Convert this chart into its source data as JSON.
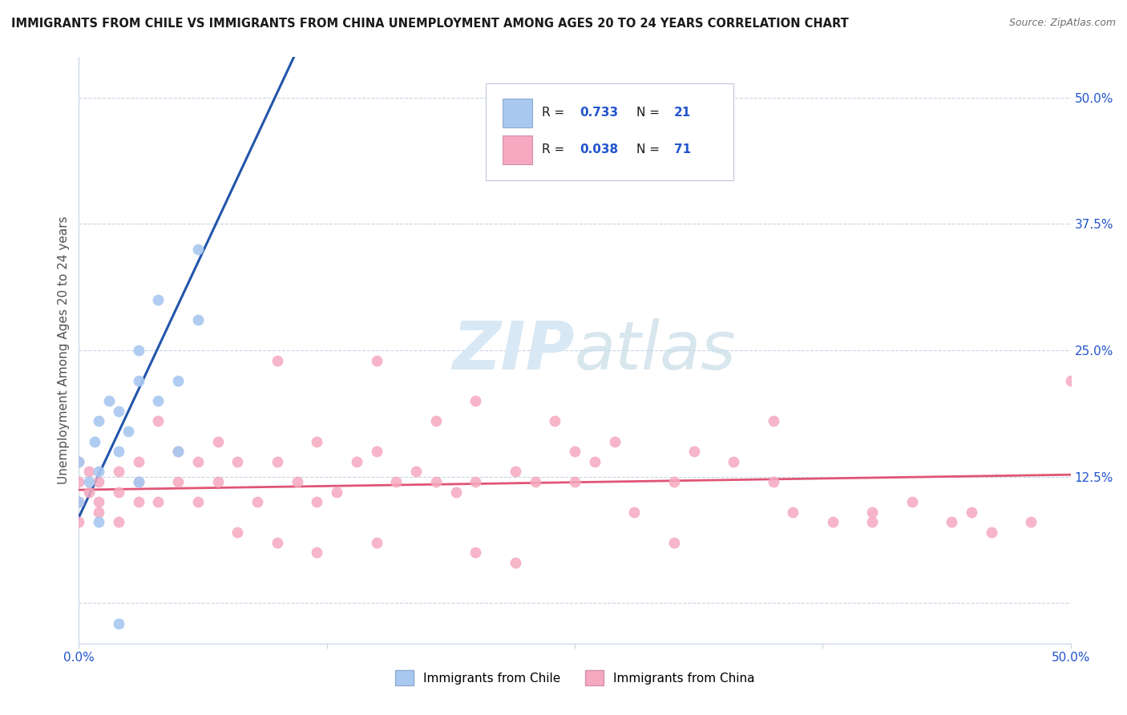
{
  "title": "IMMIGRANTS FROM CHILE VS IMMIGRANTS FROM CHINA UNEMPLOYMENT AMONG AGES 20 TO 24 YEARS CORRELATION CHART",
  "source": "Source: ZipAtlas.com",
  "ylabel": "Unemployment Among Ages 20 to 24 years",
  "xlim": [
    0.0,
    0.5
  ],
  "ylim": [
    -0.04,
    0.54
  ],
  "chile_color": "#a8c8f0",
  "china_color": "#f5a8c0",
  "chile_line_color": "#2255aa",
  "china_line_color": "#e05575",
  "chile_dash_color": "#aabbd8",
  "watermark_color": "#d8e8f5",
  "background_color": "#ffffff",
  "grid_color": "#c8d4e4",
  "legend_box_color": "#e8ecf4",
  "text_color": "#1a1a1a",
  "value_color": "#2255cc",
  "chile_scatter_x": [
    0.0,
    0.0,
    0.005,
    0.008,
    0.01,
    0.01,
    0.015,
    0.02,
    0.02,
    0.025,
    0.03,
    0.03,
    0.04,
    0.04,
    0.05,
    0.05,
    0.06,
    0.06,
    0.02,
    0.03,
    0.01
  ],
  "chile_scatter_y": [
    0.1,
    0.14,
    0.12,
    0.16,
    0.13,
    0.18,
    0.2,
    0.15,
    0.19,
    0.17,
    0.22,
    0.25,
    0.2,
    0.3,
    0.15,
    0.22,
    0.35,
    0.28,
    -0.02,
    0.12,
    0.08
  ],
  "china_scatter_x": [
    0.0,
    0.0,
    0.0,
    0.0,
    0.005,
    0.005,
    0.01,
    0.01,
    0.01,
    0.02,
    0.02,
    0.02,
    0.03,
    0.03,
    0.03,
    0.04,
    0.04,
    0.05,
    0.05,
    0.06,
    0.06,
    0.07,
    0.07,
    0.08,
    0.09,
    0.1,
    0.11,
    0.12,
    0.13,
    0.14,
    0.15,
    0.16,
    0.17,
    0.18,
    0.19,
    0.2,
    0.22,
    0.23,
    0.24,
    0.25,
    0.26,
    0.27,
    0.28,
    0.3,
    0.31,
    0.33,
    0.35,
    0.36,
    0.38,
    0.4,
    0.42,
    0.44,
    0.46,
    0.48,
    0.5,
    0.1,
    0.12,
    0.15,
    0.18,
    0.2,
    0.25,
    0.3,
    0.35,
    0.4,
    0.45,
    0.08,
    0.1,
    0.12,
    0.15,
    0.2,
    0.22
  ],
  "china_scatter_y": [
    0.1,
    0.12,
    0.14,
    0.08,
    0.11,
    0.13,
    0.1,
    0.12,
    0.09,
    0.11,
    0.13,
    0.08,
    0.14,
    0.1,
    0.12,
    0.1,
    0.18,
    0.15,
    0.12,
    0.14,
    0.1,
    0.12,
    0.16,
    0.14,
    0.1,
    0.14,
    0.12,
    0.16,
    0.11,
    0.14,
    0.15,
    0.12,
    0.13,
    0.18,
    0.11,
    0.12,
    0.13,
    0.12,
    0.18,
    0.15,
    0.14,
    0.16,
    0.09,
    0.12,
    0.15,
    0.14,
    0.12,
    0.09,
    0.08,
    0.09,
    0.1,
    0.08,
    0.07,
    0.08,
    0.22,
    0.24,
    0.1,
    0.24,
    0.12,
    0.2,
    0.12,
    0.06,
    0.18,
    0.08,
    0.09,
    0.07,
    0.06,
    0.05,
    0.06,
    0.05,
    0.04
  ],
  "chile_line_x0": 0.0,
  "chile_line_y0": 0.085,
  "chile_line_slope": 4.2,
  "china_line_x0": 0.0,
  "china_line_y0": 0.112,
  "china_line_slope": 0.03,
  "dash_line_x0": 0.0,
  "dash_line_y0": 0.085,
  "dash_line_x1": 0.3,
  "dot_size": 100
}
